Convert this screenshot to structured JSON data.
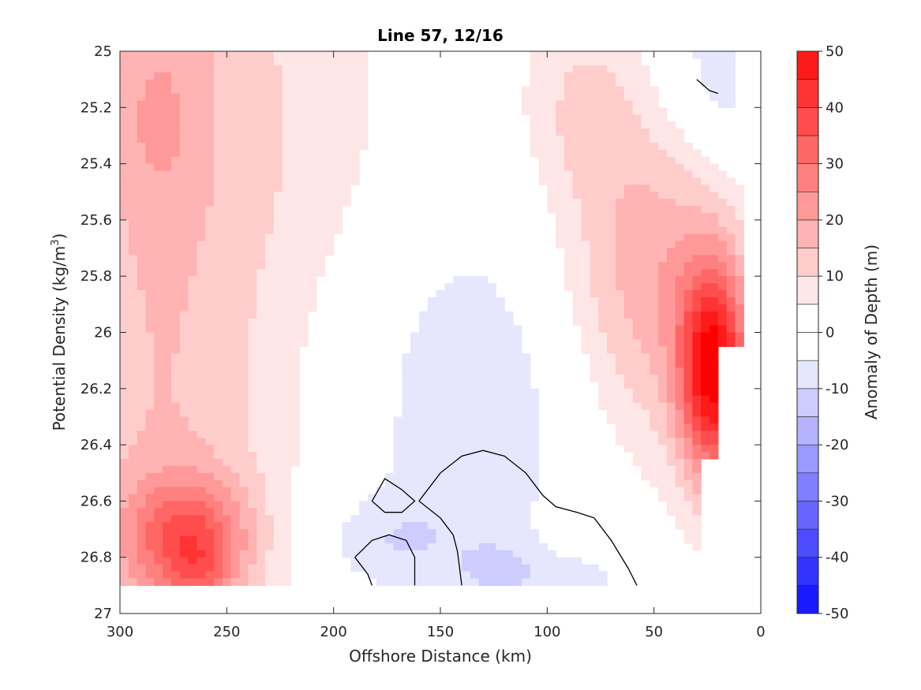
{
  "chart_data": {
    "type": "contourf",
    "title": "Line 57, 12/16",
    "xlabel": "Offshore Distance (km)",
    "ylabel_main": "Potential Density (kg/m",
    "ylabel_sup": "3",
    "ylabel_close": ")",
    "xlim": [
      300,
      0
    ],
    "ylim": [
      25,
      27
    ],
    "x_reversed": true,
    "y_reversed": true,
    "xticks": [
      "300",
      "250",
      "200",
      "150",
      "100",
      "50",
      "0"
    ],
    "yticks": [
      "25",
      "25.2",
      "25.4",
      "25.6",
      "25.8",
      "26",
      "26.2",
      "26.4",
      "26.6",
      "26.8",
      "27"
    ],
    "colorbar": {
      "label": "Anomaly of Depth (m)",
      "ticks": [
        "50",
        "40",
        "30",
        "20",
        "10",
        "0",
        "-10",
        "-20",
        "-30",
        "-40",
        "-50"
      ],
      "min": -50,
      "max": 50,
      "step": 5,
      "colors": [
        "#0000ff",
        "#1a1aff",
        "#3333ff",
        "#4d4dff",
        "#6666ff",
        "#8080ff",
        "#9999ff",
        "#b3b3ff",
        "#ccccff",
        "#e6e6ff",
        "#ffffff",
        "#ffffff",
        "#ffe6e6",
        "#ffcccc",
        "#ffb3b3",
        "#ff9999",
        "#ff8080",
        "#ff6666",
        "#ff4d4d",
        "#ff3333",
        "#ff1a1a",
        "#ff0000"
      ]
    },
    "grid": "4 km x 0.025 kg/m^3",
    "contour_line": "0"
  }
}
